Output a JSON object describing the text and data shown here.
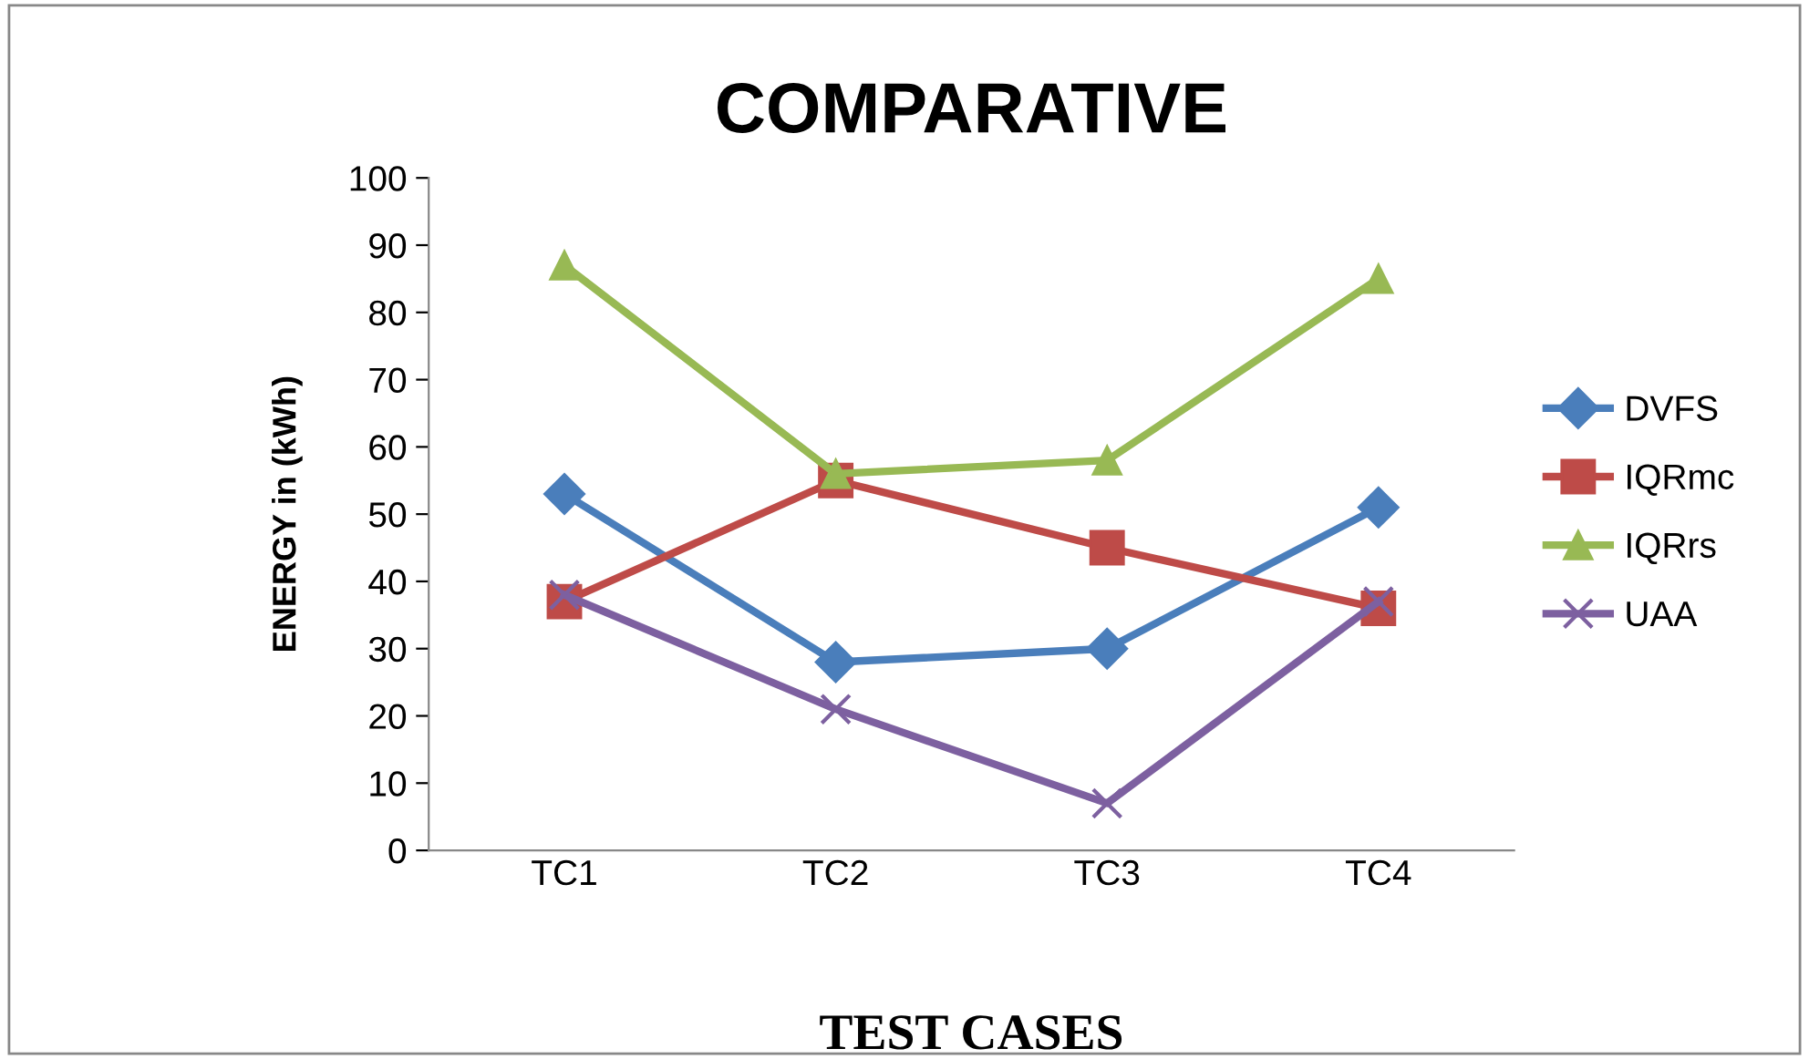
{
  "chart_data": {
    "type": "line",
    "title": "COMPARATIVE",
    "xlabel": "TEST CASES",
    "ylabel": "ENERGY in (kWh)",
    "categories": [
      "TC1",
      "TC2",
      "TC3",
      "TC4"
    ],
    "series": [
      {
        "name": "DVFS",
        "color": "#4a7ebb",
        "marker": "diamond",
        "values": [
          53,
          28,
          30,
          51
        ]
      },
      {
        "name": "IQRmc",
        "color": "#be4b48",
        "marker": "square",
        "values": [
          37,
          55,
          45,
          36
        ]
      },
      {
        "name": "IQRrs",
        "color": "#98b954",
        "marker": "triangle",
        "values": [
          87,
          56,
          58,
          85
        ]
      },
      {
        "name": "UAA",
        "color": "#7d60a0",
        "marker": "cross",
        "values": [
          38,
          21,
          7,
          37
        ]
      }
    ],
    "ylim": [
      0,
      100
    ],
    "yticks": [
      0,
      10,
      20,
      30,
      40,
      50,
      60,
      70,
      80,
      90,
      100
    ],
    "grid": false,
    "legend": "right",
    "line_style": "solid"
  }
}
